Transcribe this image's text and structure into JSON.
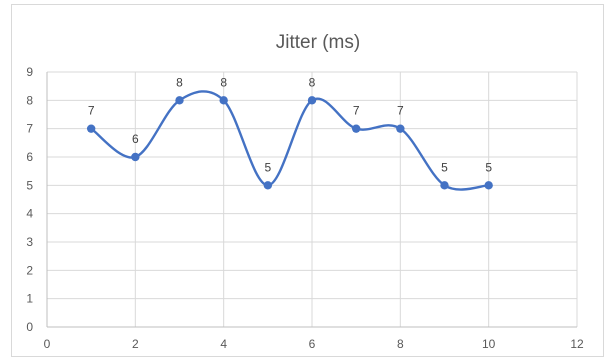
{
  "chart_data": {
    "type": "line",
    "title": "Jitter (ms)",
    "xlabel": "",
    "ylabel": "",
    "x": [
      1,
      2,
      3,
      4,
      5,
      6,
      7,
      8,
      9,
      10
    ],
    "series": [
      {
        "values": [
          7,
          6,
          8,
          8,
          5,
          8,
          7,
          7,
          5,
          5
        ],
        "color": "#4472c4"
      }
    ],
    "xlim": [
      0,
      12
    ],
    "ylim": [
      0,
      9
    ],
    "xticks": [
      0,
      2,
      4,
      6,
      8,
      10,
      12
    ],
    "yticks": [
      0,
      1,
      2,
      3,
      4,
      5,
      6,
      7,
      8,
      9
    ],
    "smooth": true,
    "markers": true,
    "data_labels": true,
    "grid": true,
    "legend": "none"
  }
}
